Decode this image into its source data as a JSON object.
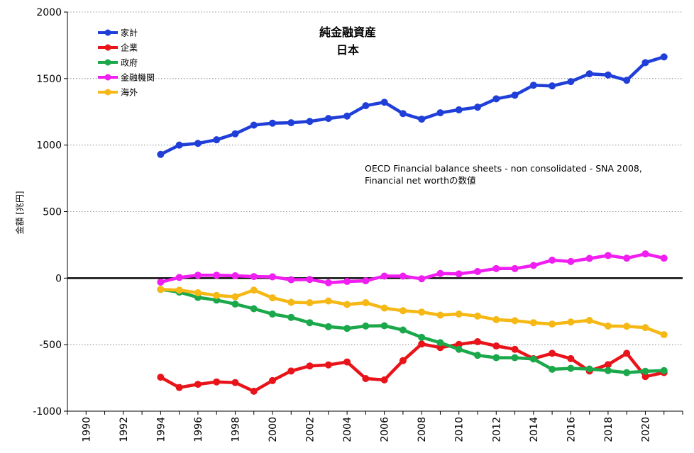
{
  "chart_data": {
    "type": "line",
    "title": "純金融資産",
    "subtitle": "日本",
    "ylabel": "金額 [兆円]",
    "xlabel": "",
    "annotation_lines": [
      "OECD Financial balance sheets - non consolidated - SNA 2008,",
      "Financial net worthの数値"
    ],
    "xlim": [
      1989,
      2022
    ],
    "ylim": [
      -1000,
      2000
    ],
    "x_ticks": [
      "1990",
      "1992",
      "1994",
      "1996",
      "1998",
      "2000",
      "2002",
      "2004",
      "2006",
      "2008",
      "2010",
      "2012",
      "2014",
      "2016",
      "2018",
      "2020"
    ],
    "y_ticks": [
      "2000",
      "1500",
      "1000",
      "500",
      "0",
      "-500",
      "-1000"
    ],
    "grid": "horizontal dotted",
    "legend_position": "top-left",
    "x": [
      1994,
      1995,
      1996,
      1997,
      1998,
      1999,
      2000,
      2001,
      2002,
      2003,
      2004,
      2005,
      2006,
      2007,
      2008,
      2009,
      2010,
      2011,
      2012,
      2013,
      2014,
      2015,
      2016,
      2017,
      2018,
      2019,
      2020,
      2021
    ],
    "series": [
      {
        "name": "家計",
        "color": "#1f3fd8",
        "values": [
          930,
          1000,
          1013,
          1040,
          1085,
          1150,
          1165,
          1168,
          1178,
          1200,
          1218,
          1296,
          1322,
          1237,
          1195,
          1243,
          1265,
          1285,
          1348,
          1375,
          1450,
          1445,
          1477,
          1536,
          1527,
          1487,
          1620,
          1663
        ]
      },
      {
        "name": "企業",
        "color": "#e8141a",
        "values": [
          -745,
          -822,
          -798,
          -780,
          -785,
          -850,
          -770,
          -698,
          -660,
          -652,
          -630,
          -755,
          -765,
          -620,
          -495,
          -522,
          -498,
          -478,
          -510,
          -535,
          -605,
          -565,
          -605,
          -698,
          -650,
          -565,
          -740,
          -710
        ]
      },
      {
        "name": "政府",
        "color": "#1aa84a",
        "values": [
          -85,
          -105,
          -145,
          -165,
          -195,
          -230,
          -270,
          -295,
          -335,
          -365,
          -378,
          -360,
          -358,
          -390,
          -445,
          -485,
          -535,
          -580,
          -598,
          -598,
          -608,
          -685,
          -678,
          -683,
          -695,
          -710,
          -700,
          -695
        ]
      },
      {
        "name": "金融機関",
        "color": "#f01ef0",
        "values": [
          -30,
          5,
          22,
          22,
          18,
          12,
          10,
          -12,
          -10,
          -35,
          -25,
          -20,
          15,
          15,
          -5,
          35,
          32,
          50,
          72,
          72,
          95,
          135,
          125,
          148,
          170,
          150,
          182,
          150
        ]
      },
      {
        "name": "海外",
        "color": "#f5b814",
        "values": [
          -85,
          -90,
          -110,
          -130,
          -140,
          -90,
          -148,
          -182,
          -185,
          -172,
          -198,
          -185,
          -225,
          -245,
          -255,
          -278,
          -270,
          -285,
          -312,
          -320,
          -335,
          -345,
          -330,
          -318,
          -360,
          -362,
          -372,
          -425
        ]
      }
    ]
  }
}
